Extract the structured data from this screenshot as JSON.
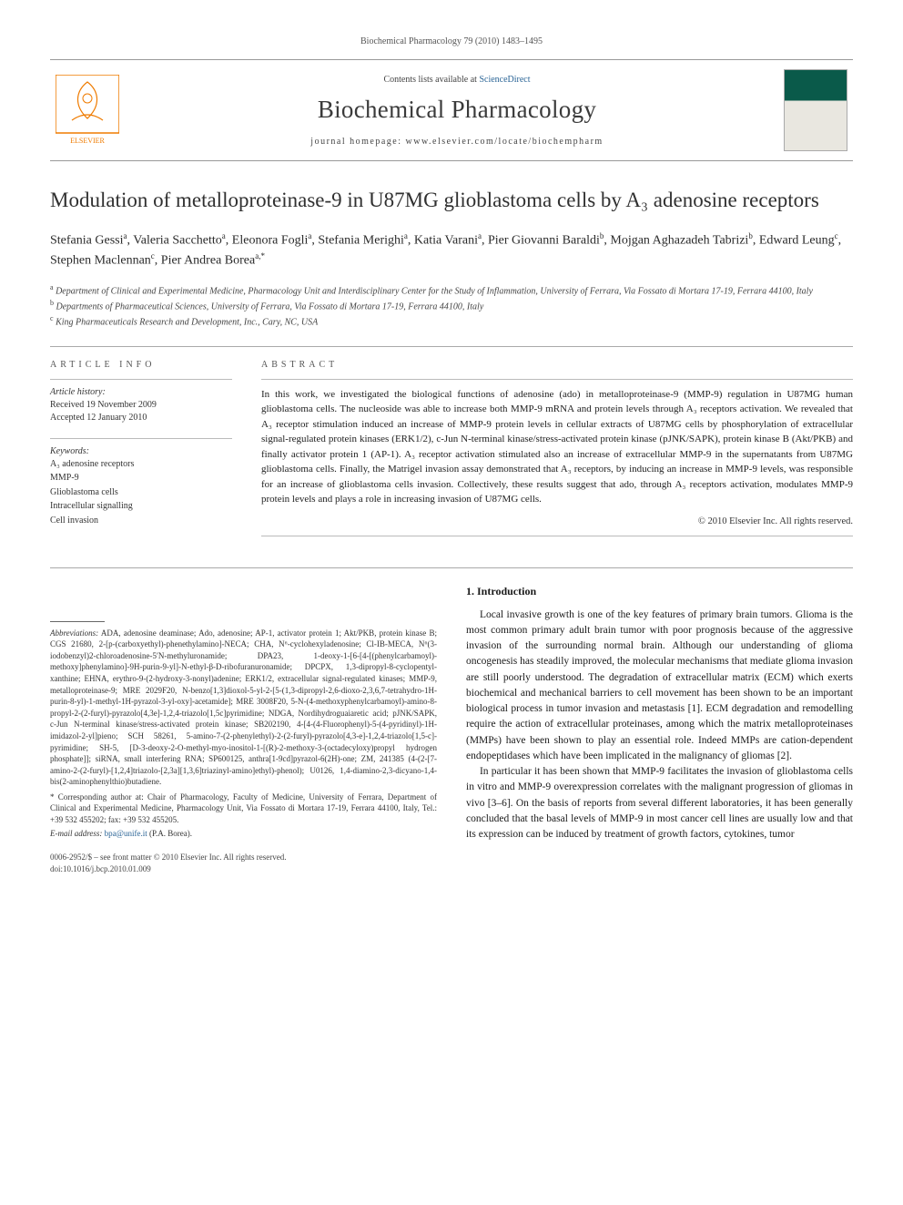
{
  "runningHead": "Biochemical Pharmacology 79 (2010) 1483–1495",
  "banner": {
    "contentsPrefix": "Contents lists available at ",
    "contentsLink": "ScienceDirect",
    "journal": "Biochemical Pharmacology",
    "homepage": "journal homepage: www.elsevier.com/locate/biochempharm",
    "publisherName": "ELSEVIER"
  },
  "title": "Modulation of metalloproteinase-9 in U87MG glioblastoma cells by A₃ adenosine receptors",
  "authorsHtml": "Stefania Gessi<sup>a</sup>, Valeria Sacchetto<sup>a</sup>, Eleonora Fogli<sup>a</sup>, Stefania Merighi<sup>a</sup>, Katia Varani<sup>a</sup>, Pier Giovanni Baraldi<sup>b</sup>, Mojgan Aghazadeh Tabrizi<sup>b</sup>, Edward Leung<sup>c</sup>, Stephen Maclennan<sup>c</sup>, Pier Andrea Borea<sup>a,*</sup>",
  "affiliations": [
    {
      "sup": "a",
      "text": "Department of Clinical and Experimental Medicine, Pharmacology Unit and Interdisciplinary Center for the Study of Inflammation, University of Ferrara, Via Fossato di Mortara 17-19, Ferrara 44100, Italy"
    },
    {
      "sup": "b",
      "text": "Departments of Pharmaceutical Sciences, University of Ferrara, Via Fossato di Mortara 17-19, Ferrara 44100, Italy"
    },
    {
      "sup": "c",
      "text": "King Pharmaceuticals Research and Development, Inc., Cary, NC, USA"
    }
  ],
  "articleInfo": {
    "head": "ARTICLE INFO",
    "historyLabel": "Article history:",
    "received": "Received 19 November 2009",
    "accepted": "Accepted 12 January 2010",
    "keywordsLabel": "Keywords:",
    "keywords": [
      "A₃ adenosine receptors",
      "MMP-9",
      "Glioblastoma cells",
      "Intracellular signalling",
      "Cell invasion"
    ]
  },
  "abstract": {
    "head": "ABSTRACT",
    "text": "In this work, we investigated the biological functions of adenosine (ado) in metalloproteinase-9 (MMP-9) regulation in U87MG human glioblastoma cells. The nucleoside was able to increase both MMP-9 mRNA and protein levels through A₃ receptors activation. We revealed that A₃ receptor stimulation induced an increase of MMP-9 protein levels in cellular extracts of U87MG cells by phosphorylation of extracellular signal-regulated protein kinases (ERK1/2), c-Jun N-terminal kinase/stress-activated protein kinase (pJNK/SAPK), protein kinase B (Akt/PKB) and finally activator protein 1 (AP-1). A₃ receptor activation stimulated also an increase of extracellular MMP-9 in the supernatants from U87MG glioblastoma cells. Finally, the Matrigel invasion assay demonstrated that A₃ receptors, by inducing an increase in MMP-9 levels, was responsible for an increase of glioblastoma cells invasion. Collectively, these results suggest that ado, through A₃ receptors activation, modulates MMP-9 protein levels and plays a role in increasing invasion of U87MG cells.",
    "copyright": "© 2010 Elsevier Inc. All rights reserved."
  },
  "intro": {
    "head": "1. Introduction",
    "p1": "Local invasive growth is one of the key features of primary brain tumors. Glioma is the most common primary adult brain tumor with poor prognosis because of the aggressive invasion of the surrounding normal brain. Although our understanding of glioma oncogenesis has steadily improved, the molecular mechanisms that mediate glioma invasion are still poorly understood. The degradation of extracellular matrix (ECM) which exerts biochemical and mechanical barriers to cell movement has been shown to be an important biological process in tumor invasion and metastasis [1]. ECM degradation and remodelling require the action of extracellular proteinases, among which the matrix metalloproteinases (MMPs) have been shown to play an essential role. Indeed MMPs are cation-dependent endopeptidases which have been implicated in the malignancy of gliomas [2].",
    "p2": "In particular it has been shown that MMP-9 facilitates the invasion of glioblastoma cells in vitro and MMP-9 overexpression correlates with the malignant progression of gliomas in vivo [3–6]. On the basis of reports from several different laboratories, it has been generally concluded that the basal levels of MMP-9 in most cancer cell lines are usually low and that its expression can be induced by treatment of growth factors, cytokines, tumor"
  },
  "footnotes": {
    "abbrevLabel": "Abbreviations:",
    "abbrev": "ADA, adenosine deaminase; Ado, adenosine; AP-1, activator protein 1; Akt/PKB, protein kinase B; CGS 21680, 2-[p-(carboxyethyl)-phenethylamino]-NECA; CHA, N⁶-cyclohexyladenosine; Cl-IB-MECA, N⁶(3-iodobenzyl)2-chloroadenosine-5′N-methyluronamide; DPA23, 1-deoxy-1-[6-[4-[(phenylcarbamoyl)-methoxy]phenylamino]-9H-purin-9-yl]-N-ethyl-β-D-ribofuranuronamide; DPCPX, 1,3-dipropyl-8-cyclopentyl-xanthine; EHNA, erythro-9-(2-hydroxy-3-nonyl)adenine; ERK1/2, extracellular signal-regulated kinases; MMP-9, metalloproteinase-9; MRE 2029F20, N-benzo[1,3]dioxol-5-yl-2-[5-(1,3-dipropyl-2,6-dioxo-2,3,6,7-tetrahydro-1H-purin-8-yl)-1-methyl-1H-pyrazol-3-yl-oxy]-acetamide]; MRE 3008F20, 5-N-(4-methoxyphenylcarbamoyl)-amino-8-propyl-2-(2-furyl)-pyrazolo[4,3e]-1,2,4-triazolo[1,5c]pyrimidine; NDGA, Nordihydroguaiaretic acid; pJNK/SAPK, c-Jun N-terminal kinase/stress-activated protein kinase; SB202190, 4-[4-(4-Fluorophenyl)-5-(4-pyridinyl)-1H-imidazol-2-yl]pieno; SCH 58261, 5-amino-7-(2-phenylethyl)-2-(2-furyl)-pyrazolo[4,3-e]-1,2,4-triazolo[1,5-c]-pyrimidine; SH-5, [D-3-deoxy-2-O-methyl-myo-inositol-1-[(R)-2-methoxy-3-(octadecyloxy)propyl hydrogen phosphate]]; siRNA, small interfering RNA; SP600125, anthra[1-9cd]pyrazol-6(2H)-one; ZM, 241385 (4-(2-[7-amino-2-(2-furyl)-[1,2,4]triazolo-[2,3a][1,3,6]triazinyl-amino]ethyl)-phenol); U0126, 1,4-diamino-2,3-dicyano-1,4-bis(2-aminophenylthio)butadiene.",
    "corrLabel": "* Corresponding author at:",
    "corr": "Chair of Pharmacology, Faculty of Medicine, University of Ferrara, Department of Clinical and Experimental Medicine, Pharmacology Unit, Via Fossato di Mortara 17-19, Ferrara 44100, Italy, Tel.: +39 532 455202; fax: +39 532 455205.",
    "emailLabel": "E-mail address:",
    "email": "bpa@unife.it",
    "emailSuffix": "(P.A. Borea)."
  },
  "bottom": {
    "line1": "0006-2952/$ – see front matter © 2010 Elsevier Inc. All rights reserved.",
    "line2": "doi:10.1016/j.bcp.2010.01.009"
  },
  "colors": {
    "text": "#1a1a1a",
    "muted": "#555555",
    "link": "#2a6496",
    "rule": "#999999",
    "coverTop": "#0a5a4a",
    "elsevierOrange": "#ef7b00"
  }
}
